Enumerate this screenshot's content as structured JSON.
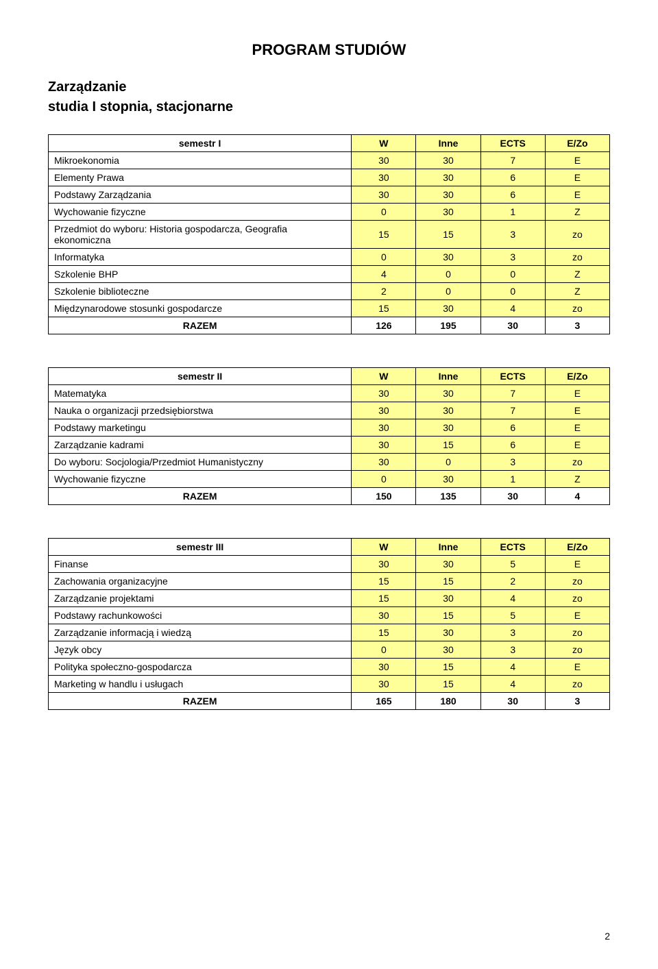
{
  "title": "PROGRAM STUDIÓW",
  "heading1": "Zarządzanie",
  "heading2": "studia I stopnia, stacjonarne",
  "columns": [
    "W",
    "Inne",
    "ECTS",
    "E/Zo"
  ],
  "razem_label": "RAZEM",
  "colors": {
    "highlight": "#ffff99",
    "border": "#000000",
    "background": "#ffffff",
    "text": "#000000"
  },
  "typography": {
    "font_family": "Arial",
    "title_fontsize": 22,
    "heading_fontsize": 20,
    "body_fontsize": 14
  },
  "tables": [
    {
      "header_label": "semestr I",
      "rows": [
        {
          "label": "Mikroekonomia",
          "vals": [
            "30",
            "30",
            "7",
            "E"
          ]
        },
        {
          "label": "Elementy Prawa",
          "vals": [
            "30",
            "30",
            "6",
            "E"
          ]
        },
        {
          "label": "Podstawy Zarządzania",
          "vals": [
            "30",
            "30",
            "6",
            "E"
          ]
        },
        {
          "label": "Wychowanie fizyczne",
          "vals": [
            "0",
            "30",
            "1",
            "Z"
          ]
        },
        {
          "label": "Przedmiot do wyboru: Historia gospodarcza, Geografia ekonomiczna",
          "vals": [
            "15",
            "15",
            "3",
            "zo"
          ]
        },
        {
          "label": "Informatyka",
          "vals": [
            "0",
            "30",
            "3",
            "zo"
          ]
        },
        {
          "label": "Szkolenie BHP",
          "vals": [
            "4",
            "0",
            "0",
            "Z"
          ]
        },
        {
          "label": "Szkolenie biblioteczne",
          "vals": [
            "2",
            "0",
            "0",
            "Z"
          ]
        },
        {
          "label": "Międzynarodowe stosunki gospodarcze",
          "vals": [
            "15",
            "30",
            "4",
            "zo"
          ]
        }
      ],
      "razem": [
        "126",
        "195",
        "30",
        "3"
      ]
    },
    {
      "header_label": "semestr II",
      "rows": [
        {
          "label": "Matematyka",
          "vals": [
            "30",
            "30",
            "7",
            "E"
          ]
        },
        {
          "label": "Nauka o organizacji przedsiębiorstwa",
          "vals": [
            "30",
            "30",
            "7",
            "E"
          ]
        },
        {
          "label": "Podstawy marketingu",
          "vals": [
            "30",
            "30",
            "6",
            "E"
          ]
        },
        {
          "label": "Zarządzanie kadrami",
          "vals": [
            "30",
            "15",
            "6",
            "E"
          ]
        },
        {
          "label": "Do wyboru: Socjologia/Przedmiot Humanistyczny",
          "vals": [
            "30",
            "0",
            "3",
            "zo"
          ]
        },
        {
          "label": "Wychowanie fizyczne",
          "vals": [
            "0",
            "30",
            "1",
            "Z"
          ]
        }
      ],
      "razem": [
        "150",
        "135",
        "30",
        "4"
      ]
    },
    {
      "header_label": "semestr III",
      "rows": [
        {
          "label": "Finanse",
          "vals": [
            "30",
            "30",
            "5",
            "E"
          ]
        },
        {
          "label": "Zachowania organizacyjne",
          "vals": [
            "15",
            "15",
            "2",
            "zo"
          ]
        },
        {
          "label": "Zarządzanie projektami",
          "vals": [
            "15",
            "30",
            "4",
            "zo"
          ]
        },
        {
          "label": "Podstawy rachunkowości",
          "vals": [
            "30",
            "15",
            "5",
            "E"
          ]
        },
        {
          "label": "Zarządzanie informacją i wiedzą",
          "vals": [
            "15",
            "30",
            "3",
            "zo"
          ]
        },
        {
          "label": "Język obcy",
          "vals": [
            "0",
            "30",
            "3",
            "zo"
          ]
        },
        {
          "label": "Polityka społeczno-gospodarcza",
          "vals": [
            "30",
            "15",
            "4",
            "E"
          ]
        },
        {
          "label": "Marketing w handlu i usługach",
          "vals": [
            "30",
            "15",
            "4",
            "zo"
          ]
        }
      ],
      "razem": [
        "165",
        "180",
        "30",
        "3"
      ]
    }
  ],
  "page_number": "2"
}
